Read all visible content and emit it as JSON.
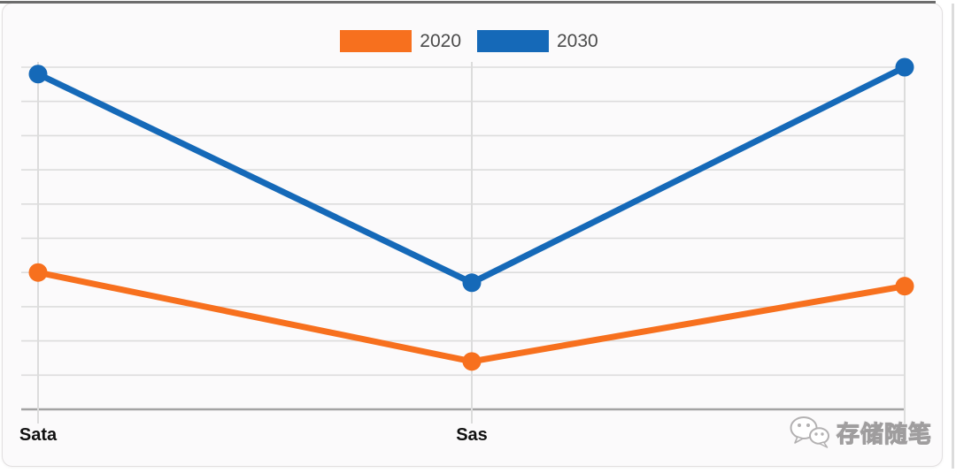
{
  "legend": {
    "items": [
      {
        "label": "2020",
        "color": "#f7701e"
      },
      {
        "label": "2030",
        "color": "#1569b8"
      }
    ]
  },
  "chart_data": {
    "type": "line",
    "categories": [
      "Sata",
      "Sas",
      ""
    ],
    "series": [
      {
        "name": "2020",
        "color": "#f7701e",
        "values": [
          4.0,
          1.4,
          3.6
        ]
      },
      {
        "name": "2030",
        "color": "#1569b8",
        "values": [
          9.8,
          3.7,
          10.0
        ]
      }
    ],
    "title": "",
    "xlabel": "",
    "ylabel": "",
    "ylim": [
      0,
      10
    ],
    "y_gridline_step": 1,
    "y_tick_labels_visible": false,
    "grid": true,
    "legend_position": "top-center",
    "note": "third x-category label is hidden behind the watermark"
  },
  "watermark": {
    "text": "存储随笔",
    "icon": "wechat-logo"
  },
  "colors": {
    "series_2020": "#f7701e",
    "series_2030": "#1569b8",
    "gridline": "#dcdcdc",
    "axis_line": "#a3a3a3",
    "card_background": "#fbfafb",
    "card_border": "#e2dfe0",
    "page_background": "#ffffff",
    "legend_text": "#4b4b4b",
    "x_label_text": "#111111",
    "watermark_gray": "#9f9d9e",
    "top_border_line": "#6c6c6c"
  }
}
